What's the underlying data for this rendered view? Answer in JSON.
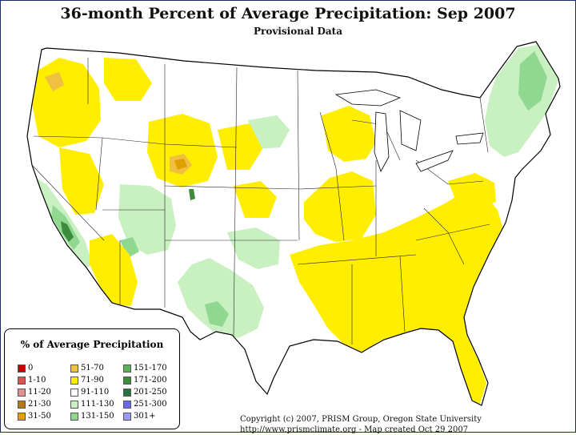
{
  "title": "36-month Percent of Average Precipitation: Sep 2007",
  "subtitle": "Provisional Data",
  "legend": {
    "title": "% of Average Precipitation",
    "items": [
      {
        "label": "0",
        "color": "#cc0000"
      },
      {
        "label": "1-10",
        "color": "#e05050"
      },
      {
        "label": "11-20",
        "color": "#e09090"
      },
      {
        "label": "21-30",
        "color": "#b87820"
      },
      {
        "label": "31-50",
        "color": "#e0a000"
      },
      {
        "label": "51-70",
        "color": "#f0c040"
      },
      {
        "label": "71-90",
        "color": "#ffee00"
      },
      {
        "label": "91-110",
        "color": "#ffffff"
      },
      {
        "label": "111-130",
        "color": "#c8f0c0"
      },
      {
        "label": "131-150",
        "color": "#90d890"
      },
      {
        "label": "151-170",
        "color": "#60b060"
      },
      {
        "label": "171-200",
        "color": "#3c8c3c"
      },
      {
        "label": "201-250",
        "color": "#2a7040"
      },
      {
        "label": "251-300",
        "color": "#6a6af0"
      },
      {
        "label": "301+",
        "color": "#9a9af8"
      }
    ]
  },
  "copyright": {
    "line1": "Copyright (c) 2007, PRISM Group, Oregon State University",
    "line2": "http://www.prismclimate.org  -  Map created Oct 29 2007"
  },
  "colors": {
    "dry": "#ffee00",
    "dry_strong": "#f0c040",
    "dry_extreme": "#e0a000",
    "wet": "#c8f0c0",
    "wet_strong": "#90d890",
    "wet_extreme": "#3c8c3c",
    "outline": "#000000"
  }
}
